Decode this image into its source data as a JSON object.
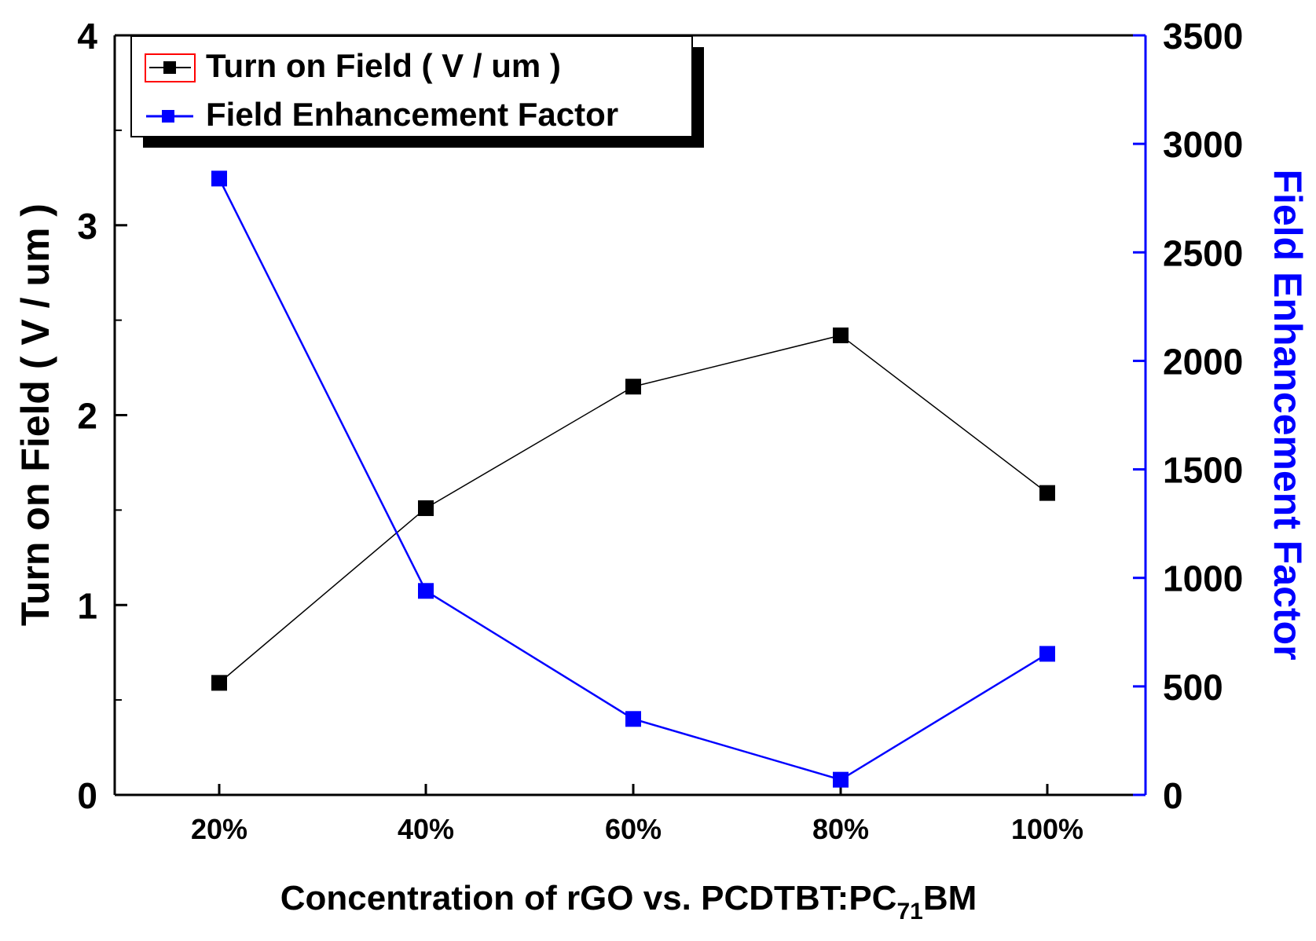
{
  "chart_data": {
    "type": "line",
    "categories": [
      "20%",
      "40%",
      "60%",
      "80%",
      "100%"
    ],
    "xlabel_parts": [
      "Concentration of rGO vs. PCDTBT:PC",
      "71",
      "BM"
    ],
    "ylabel_left": "Turn on Field ( V / um )",
    "ylabel_right": "Field Enhancement Factor",
    "ylim_left": [
      0,
      4
    ],
    "ylim_right": [
      0,
      3500
    ],
    "yticks_left": [
      "0",
      "1",
      "2",
      "3",
      "4"
    ],
    "yticks_right": [
      "0",
      "500",
      "1000",
      "1500",
      "2000",
      "2500",
      "3000",
      "3500"
    ],
    "series": [
      {
        "name": "Turn on Field ( V / um )",
        "axis": "left",
        "color": "#000000",
        "values": [
          0.59,
          1.51,
          2.15,
          2.42,
          1.59
        ]
      },
      {
        "name": "Field Enhancement Factor",
        "axis": "right",
        "color": "#0000ff",
        "values": [
          2840,
          940,
          350,
          70,
          650
        ]
      }
    ],
    "legend": "top-left",
    "grid": false
  },
  "colors": {
    "left_axis": "#000000",
    "right_axis": "#0000ff",
    "legend_marker_border": "#ff0000"
  }
}
